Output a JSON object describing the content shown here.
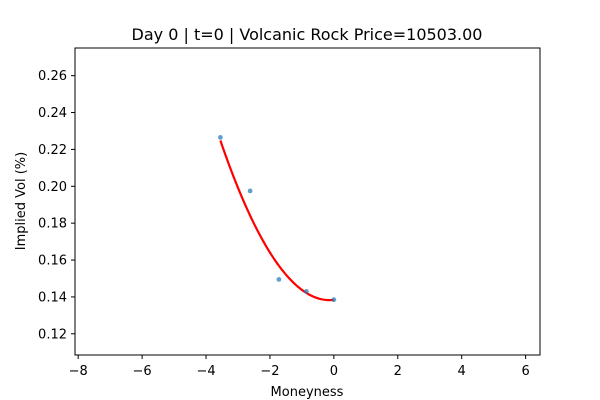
{
  "chart_data": {
    "type": "scatter",
    "title": "Day 0 | t=0 | Volcanic Rock Price=10503.00",
    "xlabel": "Moneyness",
    "ylabel": "Implied Vol (%)",
    "xlim": [
      -8.1,
      6.45
    ],
    "ylim": [
      0.1085,
      0.275
    ],
    "xticks": [
      -8,
      -6,
      -4,
      -2,
      0,
      2,
      4,
      6
    ],
    "xtick_labels": [
      "−8",
      "−6",
      "−4",
      "−2",
      "0",
      "2",
      "4",
      "6"
    ],
    "yticks": [
      0.12,
      0.14,
      0.16,
      0.18,
      0.2,
      0.22,
      0.24,
      0.26
    ],
    "ytick_labels": [
      "0.12",
      "0.14",
      "0.16",
      "0.18",
      "0.20",
      "0.22",
      "0.24",
      "0.26"
    ],
    "grid": false,
    "series": [
      {
        "kind": "scatter",
        "color": "#1f77b4",
        "points": [
          {
            "x": -3.55,
            "y": 0.2265
          },
          {
            "x": -2.62,
            "y": 0.1975
          },
          {
            "x": -1.72,
            "y": 0.1495
          },
          {
            "x": -0.86,
            "y": 0.143
          },
          {
            "x": 0.0,
            "y": 0.1385
          }
        ]
      },
      {
        "kind": "line",
        "color": "#ff0000",
        "fit": "quadratic",
        "coefficients": {
          "a": 0.00742,
          "b": 0.002,
          "c": 0.1384
        },
        "x_range": [
          -3.55,
          0.0
        ]
      }
    ]
  }
}
